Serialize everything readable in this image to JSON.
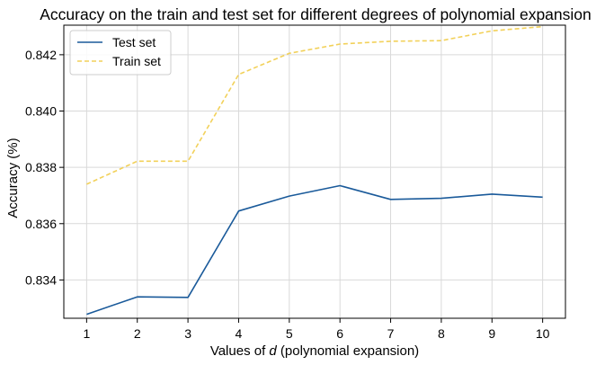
{
  "chart_data": {
    "type": "line",
    "title": "Accuracy on the train and test set for different degrees of polynomial expansion",
    "xlabel": "Values of d (polynomial expansion)",
    "xlabel_prefix": "Values of ",
    "xlabel_var": "d",
    "xlabel_suffix": " (polynomial expansion)",
    "ylabel": "Accuracy (%)",
    "x": [
      1,
      2,
      3,
      4,
      5,
      6,
      7,
      8,
      9,
      10
    ],
    "xticks": [
      "1",
      "2",
      "3",
      "4",
      "5",
      "6",
      "7",
      "8",
      "9",
      "10"
    ],
    "yticks": [
      "0.834",
      "0.836",
      "0.838",
      "0.840",
      "0.842"
    ],
    "ytick_values": [
      0.834,
      0.836,
      0.838,
      0.84,
      0.842
    ],
    "xlim": [
      0.55,
      10.45
    ],
    "ylim": [
      0.83264,
      0.84305
    ],
    "grid": true,
    "legend_position": "top-left",
    "series": [
      {
        "name": "Test set",
        "color": "#1a5a9a",
        "dash": "solid",
        "values": [
          0.83278,
          0.8334,
          0.83338,
          0.83645,
          0.83698,
          0.83735,
          0.83686,
          0.8369,
          0.83705,
          0.83694
        ]
      },
      {
        "name": "Train set",
        "color": "#f2d15a",
        "dash": "dashed",
        "values": [
          0.8374,
          0.83822,
          0.83822,
          0.8413,
          0.84205,
          0.84238,
          0.84248,
          0.8425,
          0.84285,
          0.843
        ]
      }
    ]
  }
}
